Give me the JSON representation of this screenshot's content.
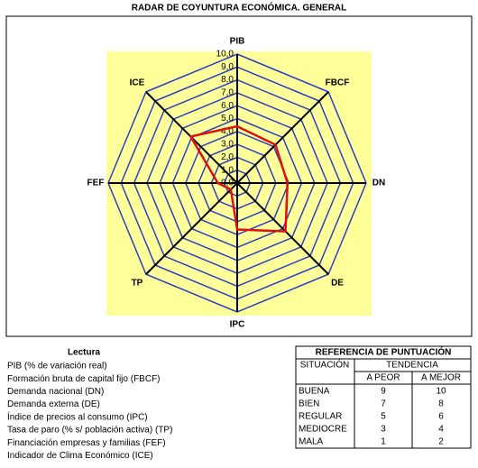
{
  "chart_data": {
    "type": "radar",
    "title": "RADAR DE COYUNTURA ECONÓMICA. GENERAL",
    "categories": [
      "PIB",
      "FBCF",
      "DN",
      "DE",
      "IPC",
      "TP",
      "FEF",
      "ICE"
    ],
    "series": [
      {
        "color": "#e01010",
        "values": [
          4.4,
          4.2,
          3.9,
          5.3,
          3.6,
          0.7,
          1.5,
          5.1
        ]
      }
    ],
    "rlim": [
      0,
      10
    ],
    "rticks": [
      {
        "value": 0,
        "label": "0,0"
      },
      {
        "value": 1,
        "label": "1,0"
      },
      {
        "value": 2,
        "label": "2,0"
      },
      {
        "value": 3,
        "label": "3,0"
      },
      {
        "value": 4,
        "label": "4,0"
      },
      {
        "value": 5,
        "label": "5,0"
      },
      {
        "value": 6,
        "label": "6,0"
      },
      {
        "value": 7,
        "label": "7,0"
      },
      {
        "value": 8,
        "label": "8,0"
      },
      {
        "value": 9,
        "label": "9,0"
      },
      {
        "value": 10,
        "label": "10,0"
      }
    ],
    "grid": true,
    "grid_color": "#2a3fc4"
  },
  "lectura": {
    "title": "Lectura",
    "items": [
      "PIB (% de variación real)",
      "Formación bruta de capital fijo (FBCF)",
      "Demanda nacional (DN)",
      "Demanda externa (DE)",
      "Índice de precios al consumo (IPC)",
      "Tasa de paro (% s/ población activa) (TP)",
      "Financiación empresas y familias (FEF)",
      "Indicador de Clima Económico (ICE)"
    ]
  },
  "reference": {
    "title": "REFERENCIA DE PUNTUACIÓN",
    "situation": "SITUACIÓN",
    "trend": "TENDENCIA",
    "subheaders": [
      "A PEOR",
      "A MEJOR"
    ],
    "rows": [
      [
        "BUENA",
        "9",
        "10"
      ],
      [
        "BIEN",
        "7",
        "8"
      ],
      [
        "REGULAR",
        "5",
        "6"
      ],
      [
        "MEDIOCRE",
        "3",
        "4"
      ],
      [
        "MALA",
        "1",
        "2"
      ]
    ]
  }
}
